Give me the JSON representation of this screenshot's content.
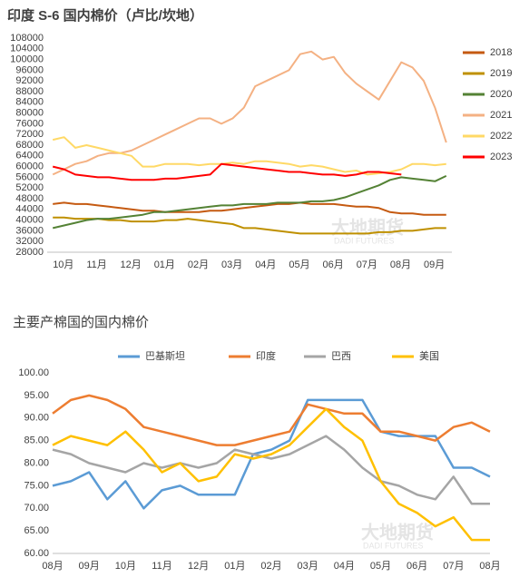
{
  "chart_data": [
    {
      "type": "line",
      "title": "印度 S-6 国内棉价（卢比/坎地）",
      "watermark": "大地期货",
      "watermark_sub": "DADI FUTURES",
      "categories": [
        "10月",
        null,
        null,
        "11月",
        null,
        null,
        "12月",
        null,
        null,
        "01月",
        null,
        null,
        "02月",
        null,
        null,
        "03月",
        null,
        null,
        "04月",
        null,
        null,
        "05月",
        null,
        null,
        "06月",
        null,
        null,
        "07月",
        null,
        null,
        "08月",
        null,
        null,
        "09月",
        null,
        null
      ],
      "ylim": [
        28000,
        108000
      ],
      "yticks": [
        28000,
        32000,
        36000,
        40000,
        44000,
        48000,
        52000,
        56000,
        60000,
        64000,
        68000,
        72000,
        76000,
        80000,
        84000,
        88000,
        92000,
        96000,
        100000,
        104000,
        108000
      ],
      "legend": "right",
      "series": [
        {
          "name": "2018",
          "color": "#c55a11",
          "values": [
            46000,
            46500,
            46000,
            46000,
            45500,
            45000,
            44500,
            44000,
            43500,
            43500,
            43000,
            43000,
            43000,
            43000,
            43500,
            43500,
            44000,
            44500,
            45000,
            45500,
            46000,
            46000,
            46500,
            46000,
            46000,
            46000,
            45500,
            45000,
            45000,
            44500,
            43000,
            42500,
            42500,
            42000,
            42000,
            42000
          ]
        },
        {
          "name": "2019",
          "color": "#bf9000",
          "values": [
            41000,
            41000,
            40500,
            40500,
            40500,
            40000,
            40000,
            39500,
            39500,
            39500,
            40000,
            40000,
            40500,
            40000,
            39500,
            39000,
            38500,
            37000,
            37000,
            36500,
            36000,
            35500,
            35000,
            35000,
            35000,
            35000,
            35000,
            35000,
            35000,
            35500,
            35500,
            36000,
            36000,
            36500,
            37000,
            37000
          ]
        },
        {
          "name": "2020",
          "color": "#548235",
          "values": [
            37000,
            38000,
            39000,
            40000,
            40500,
            40500,
            41000,
            41500,
            42000,
            43000,
            43000,
            43500,
            44000,
            44500,
            45000,
            45500,
            45500,
            46000,
            46000,
            46000,
            46500,
            46500,
            46500,
            47000,
            47000,
            47500,
            48500,
            50000,
            51500,
            53000,
            55000,
            56000,
            55500,
            55000,
            54500,
            56500
          ]
        },
        {
          "name": "2021",
          "color": "#f4b183",
          "values": [
            57000,
            59000,
            61000,
            62000,
            64000,
            65000,
            65000,
            66000,
            68000,
            70000,
            72000,
            74000,
            76000,
            78000,
            78000,
            76000,
            78000,
            82000,
            90000,
            92000,
            94000,
            96000,
            102000,
            103000,
            100000,
            101000,
            95000,
            91000,
            88000,
            85000,
            92000,
            99000,
            97000,
            92000,
            82000,
            69000
          ]
        },
        {
          "name": "2022",
          "color": "#ffd966",
          "values": [
            70000,
            71000,
            67000,
            68000,
            67000,
            66000,
            65000,
            64000,
            60000,
            60000,
            61000,
            61000,
            61000,
            60500,
            61000,
            61000,
            61500,
            61000,
            62000,
            62000,
            61500,
            61000,
            60000,
            60500,
            60000,
            59000,
            58000,
            58500,
            57000,
            57500,
            58000,
            59000,
            61000,
            61000,
            60500,
            61000
          ]
        },
        {
          "name": "2023",
          "color": "#ff0000",
          "values": [
            60000,
            59000,
            57000,
            56500,
            56000,
            56000,
            55500,
            55000,
            55000,
            55000,
            55500,
            55500,
            56000,
            56500,
            57000,
            61000,
            60500,
            60000,
            59500,
            59000,
            58500,
            58000,
            58000,
            57500,
            57000,
            57000,
            56500,
            57000,
            58000,
            58000,
            57500,
            57000,
            null,
            null,
            null,
            null
          ]
        }
      ]
    },
    {
      "type": "line",
      "title": "主要产棉国的国内棉价",
      "watermark": "大地期货",
      "watermark_sub": "DADI FUTURES",
      "categories": [
        "08月",
        null,
        "09月",
        null,
        "10月",
        null,
        "11月",
        null,
        "12月",
        null,
        "01月",
        null,
        "02月",
        null,
        "03月",
        null,
        "04月",
        null,
        "05月",
        null,
        "06月",
        null,
        "07月",
        null,
        "08月"
      ],
      "ylim": [
        60,
        100
      ],
      "yticks": [
        {
          "value": 60,
          "label": "60.00"
        },
        {
          "value": 65,
          "label": "65.00"
        },
        {
          "value": 70,
          "label": "70.00"
        },
        {
          "value": 75,
          "label": "75.00"
        },
        {
          "value": 80,
          "label": "80.00"
        },
        {
          "value": 85,
          "label": "85.00"
        },
        {
          "value": 90,
          "label": "90.00"
        },
        {
          "value": 95,
          "label": "95.00"
        },
        {
          "value": 100,
          "label": "100.00"
        }
      ],
      "legend": "top",
      "series": [
        {
          "name": "巴基斯坦",
          "color": "#5b9bd5",
          "values": [
            75,
            76,
            78,
            72,
            76,
            70,
            74,
            75,
            73,
            73,
            73,
            82,
            83,
            85,
            94,
            94,
            94,
            94,
            87,
            86,
            86,
            86,
            79,
            79,
            77
          ]
        },
        {
          "name": "印度",
          "color": "#ed7d31",
          "values": [
            91,
            94,
            95,
            94,
            92,
            88,
            87,
            86,
            85,
            84,
            84,
            85,
            86,
            87,
            93,
            92,
            91,
            91,
            87,
            87,
            86,
            85,
            88,
            89,
            87
          ]
        },
        {
          "name": "巴西",
          "color": "#a5a5a5",
          "values": [
            83,
            82,
            80,
            79,
            78,
            80,
            79,
            80,
            79,
            80,
            83,
            82,
            81,
            82,
            84,
            86,
            83,
            79,
            76,
            75,
            73,
            72,
            77,
            71,
            71
          ]
        },
        {
          "name": "美国",
          "color": "#ffc000",
          "values": [
            84,
            86,
            85,
            84,
            87,
            83,
            78,
            80,
            76,
            77,
            82,
            81,
            82,
            84,
            88,
            92,
            88,
            85,
            76,
            71,
            69,
            66,
            68,
            63,
            63
          ]
        }
      ]
    }
  ]
}
